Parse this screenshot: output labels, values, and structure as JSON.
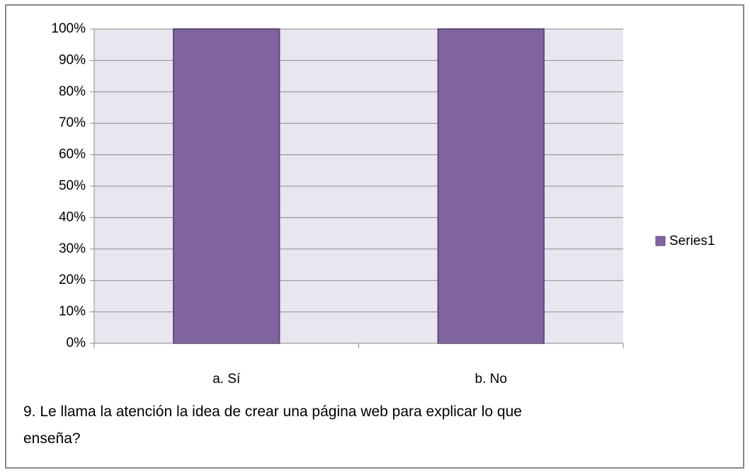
{
  "chart_data": {
    "type": "bar",
    "title": "9. Le llama la atención la idea de crear una página web para explicar lo que enseña?",
    "categories": [
      "a. Sí",
      "b. No"
    ],
    "series": [
      {
        "name": "Series1",
        "color": "#8064a2",
        "values": [
          100,
          100
        ]
      }
    ],
    "ylim": [
      0,
      100
    ],
    "yticks": [
      {
        "value": 0,
        "label": "0%"
      },
      {
        "value": 10,
        "label": "10%"
      },
      {
        "value": 20,
        "label": "20%"
      },
      {
        "value": 30,
        "label": "30%"
      },
      {
        "value": 40,
        "label": "40%"
      },
      {
        "value": 50,
        "label": "50%"
      },
      {
        "value": 60,
        "label": "60%"
      },
      {
        "value": 70,
        "label": "70%"
      },
      {
        "value": 80,
        "label": "80%"
      },
      {
        "value": 90,
        "label": "90%"
      },
      {
        "value": 100,
        "label": "100%"
      }
    ],
    "grid": true,
    "legend": "right"
  }
}
